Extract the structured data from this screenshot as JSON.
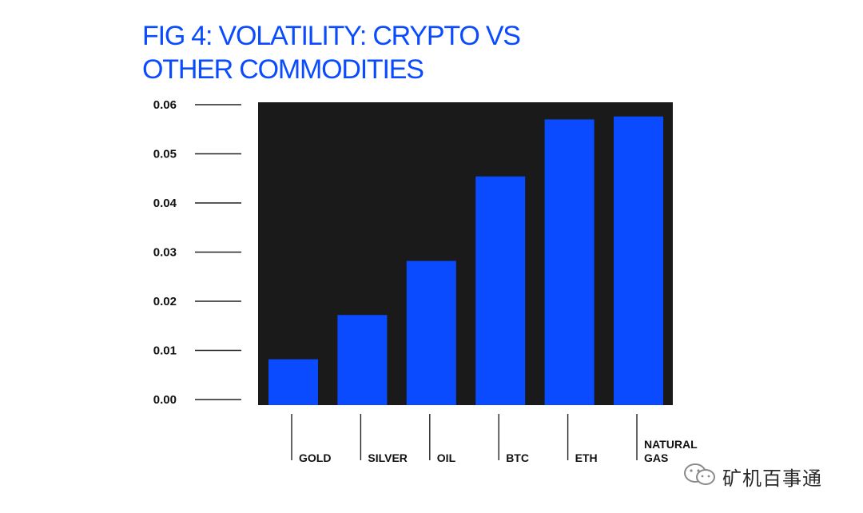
{
  "chart_data": {
    "type": "bar",
    "title_lines": [
      "FIG 4: VOLATILITY: CRYPTO VS",
      "OTHER COMMODITIES"
    ],
    "categories": [
      [
        "GOLD"
      ],
      [
        "SILVER"
      ],
      [
        "OIL"
      ],
      [
        "BTC"
      ],
      [
        "ETH"
      ],
      [
        "NATURAL",
        "GAS"
      ]
    ],
    "values": [
      0.0082,
      0.0172,
      0.0282,
      0.0454,
      0.057,
      0.0576
    ],
    "yticks": [
      "0.00",
      "0.01",
      "0.02",
      "0.03",
      "0.04",
      "0.05",
      "0.06"
    ],
    "ytick_values": [
      0,
      0.01,
      0.02,
      0.03,
      0.04,
      0.05,
      0.06
    ],
    "ylim": [
      0,
      0.06
    ],
    "xlabel": "",
    "ylabel": "",
    "grid": false,
    "legend": "none"
  },
  "colors": {
    "bar": "#0a4bff",
    "plot_background": "#1a1a1a",
    "title": "#0a4bff",
    "text": "#111111"
  },
  "watermark": {
    "text": "矿机百事通",
    "icon": "wechat-icon"
  }
}
